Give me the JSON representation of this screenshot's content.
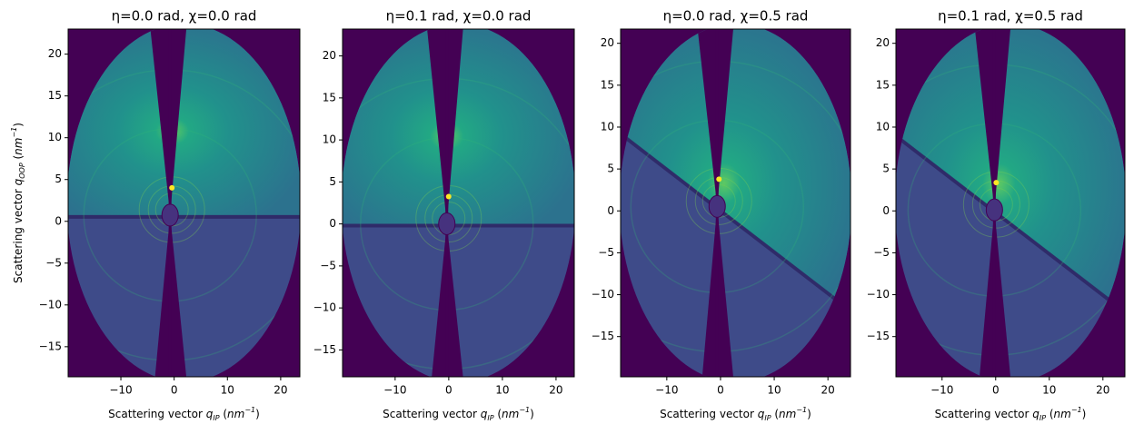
{
  "chart_data": [
    {
      "type": "image",
      "title": "η=0.0 rad, χ=0.0 rad",
      "x_label": [
        "Scattering vector ",
        "q",
        "IP",
        " (",
        "nm",
        "−1",
        ")"
      ],
      "y_label": [
        "Scattering vector ",
        "q",
        "OOP",
        " (",
        "nm",
        "−1",
        ")"
      ],
      "xlim": [
        -19.9,
        23.6
      ],
      "ylim": [
        -18.6,
        23.0
      ],
      "xticks": [
        {
          "value": -10,
          "label": "−10"
        },
        0,
        10,
        20
      ],
      "yticks": [
        {
          "value": -15,
          "label": "−15"
        },
        {
          "value": -10,
          "label": "−10"
        },
        {
          "value": -5,
          "label": "−5"
        },
        0,
        5,
        10,
        15,
        20
      ]
    },
    {
      "type": "image",
      "title": "η=0.1 rad, χ=0.0 rad",
      "x_label": [
        "Scattering vector ",
        "q",
        "IP",
        " (",
        "nm",
        "−1",
        ")"
      ],
      "xlim": [
        -19.8,
        23.4
      ],
      "ylim": [
        -18.2,
        23.2
      ],
      "xticks": [
        {
          "value": -10,
          "label": "−10"
        },
        0,
        10,
        20
      ],
      "yticks": [
        {
          "value": -15,
          "label": "−15"
        },
        {
          "value": -10,
          "label": "−10"
        },
        {
          "value": -5,
          "label": "−5"
        },
        0,
        5,
        10,
        15,
        20
      ]
    },
    {
      "type": "image",
      "title": "η=0.0 rad, χ=0.5 rad",
      "x_label": [
        "Scattering vector ",
        "q",
        "IP",
        " (",
        "nm",
        "−1",
        ")"
      ],
      "xlim": [
        -18.6,
        24.2
      ],
      "ylim": [
        -19.8,
        21.7
      ],
      "xticks": [
        {
          "value": -10,
          "label": "−10"
        },
        0,
        10,
        20
      ],
      "yticks": [
        {
          "value": -15,
          "label": "−15"
        },
        {
          "value": -10,
          "label": "−10"
        },
        {
          "value": -5,
          "label": "−5"
        },
        0,
        5,
        10,
        15,
        20
      ]
    },
    {
      "type": "image",
      "title": "η=0.1 rad, χ=0.5 rad",
      "x_label": [
        "Scattering vector ",
        "q",
        "IP",
        " (",
        "nm",
        "−1",
        ")"
      ],
      "xlim": [
        -18.6,
        24.1
      ],
      "ylim": [
        -19.8,
        21.7
      ],
      "xticks": [
        {
          "value": -10,
          "label": "−10"
        },
        0,
        10,
        20
      ],
      "yticks": [
        {
          "value": -15,
          "label": "−15"
        },
        {
          "value": -10,
          "label": "−10"
        },
        {
          "value": -5,
          "label": "−5"
        },
        0,
        5,
        10,
        15,
        20
      ]
    }
  ]
}
